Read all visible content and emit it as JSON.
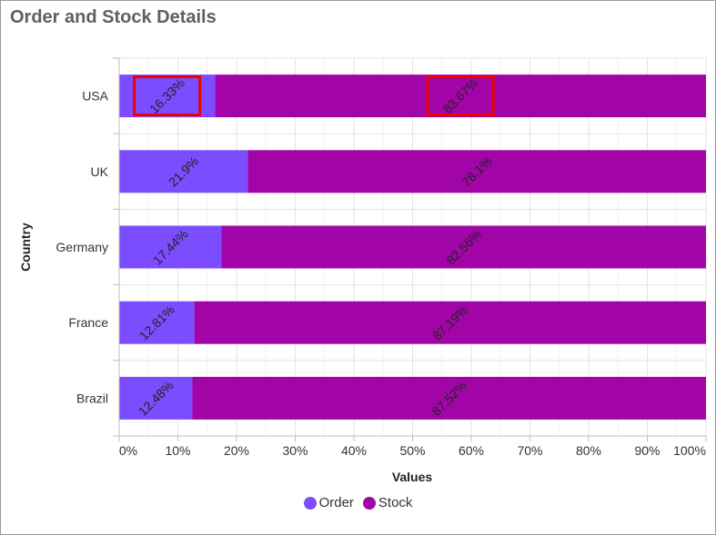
{
  "title": "Order and Stock Details",
  "chart_data": {
    "type": "bar",
    "orientation": "horizontal",
    "stacked": "100%",
    "title": "Order and Stock Details",
    "xlabel": "Values",
    "ylabel": "Country",
    "xlim": [
      0,
      100
    ],
    "x_ticks": [
      "0%",
      "10%",
      "20%",
      "30%",
      "40%",
      "50%",
      "60%",
      "70%",
      "80%",
      "90%",
      "100%"
    ],
    "categories": [
      "USA",
      "UK",
      "Germany",
      "France",
      "Brazil"
    ],
    "series": [
      {
        "name": "Order",
        "color": "#7b4dff",
        "values": [
          16.33,
          21.9,
          17.44,
          12.81,
          12.48
        ],
        "labels": [
          "16.33%",
          "21.9%",
          "17.44%",
          "12.81%",
          "12.48%"
        ]
      },
      {
        "name": "Stock",
        "color": "#a105a7",
        "values": [
          83.67,
          78.1,
          82.56,
          87.19,
          87.52
        ],
        "labels": [
          "83.67%",
          "78.1%",
          "82.56%",
          "87.19%",
          "87.52%"
        ]
      }
    ],
    "grid": true,
    "legend_position": "bottom-center",
    "highlight_color": "#ee0000",
    "highlights": [
      {
        "category": "USA",
        "series": "Order"
      },
      {
        "category": "USA",
        "series": "Stock"
      }
    ]
  }
}
